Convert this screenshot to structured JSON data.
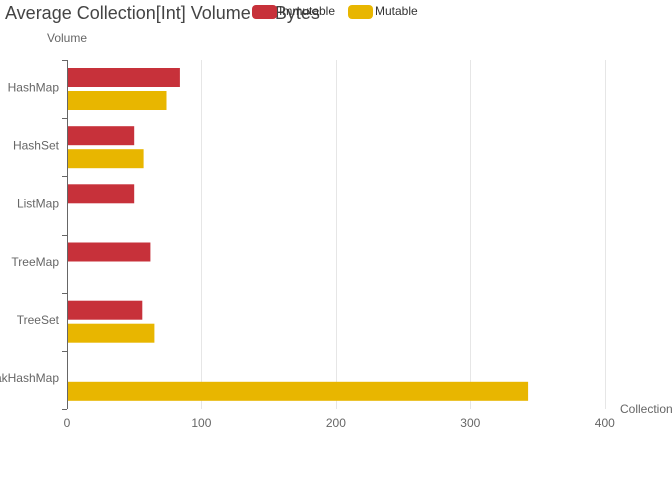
{
  "chart_data": {
    "type": "bar",
    "orientation": "horizontal",
    "title": "Average Collection[Int] Volume in Bytes",
    "xlabel": "Collection",
    "ylabel": "Volume",
    "categories": [
      "HashMap",
      "HashSet",
      "ListMap",
      "TreeMap",
      "TreeSet",
      "WeakHashMap"
    ],
    "series": [
      {
        "name": "Immutable",
        "color": "#c7313a",
        "values": [
          84,
          50,
          50,
          62,
          56,
          null
        ]
      },
      {
        "name": "Mutable",
        "color": "#e8b600",
        "values": [
          74,
          57,
          null,
          null,
          65,
          343
        ]
      }
    ],
    "xlim": [
      0,
      450
    ],
    "xticks": [
      0,
      100,
      200,
      300,
      400
    ],
    "grid": true,
    "legend_position": "top"
  }
}
